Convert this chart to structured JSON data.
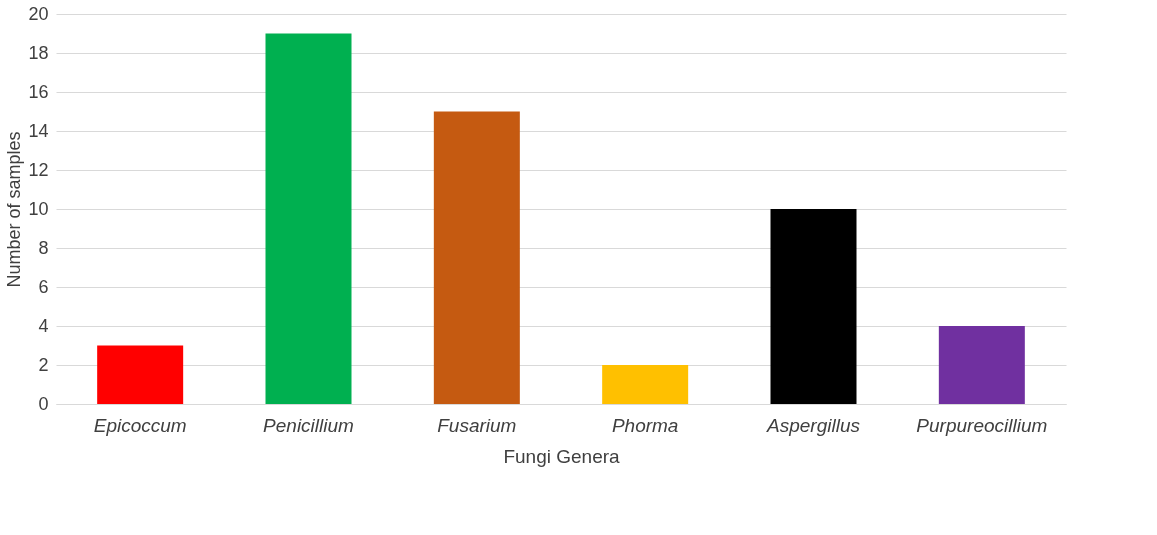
{
  "chart_data": {
    "type": "bar",
    "xlabel": "Fungi Genera",
    "ylabel": "Number of samples",
    "categories": [
      "Epicoccum",
      "Penicillium",
      "Fusarium",
      "Phorma",
      "Aspergillus",
      "Purpureocillium"
    ],
    "values": [
      3,
      19,
      15,
      2,
      10,
      4
    ],
    "colors": [
      "#ff0000",
      "#00b050",
      "#c55a11",
      "#ffc000",
      "#000000",
      "#7030a0"
    ],
    "ylim": [
      0,
      20
    ],
    "yticks": [
      0,
      2,
      4,
      6,
      8,
      10,
      12,
      14,
      16,
      18,
      20
    ],
    "grid": "y",
    "legend": false
  }
}
